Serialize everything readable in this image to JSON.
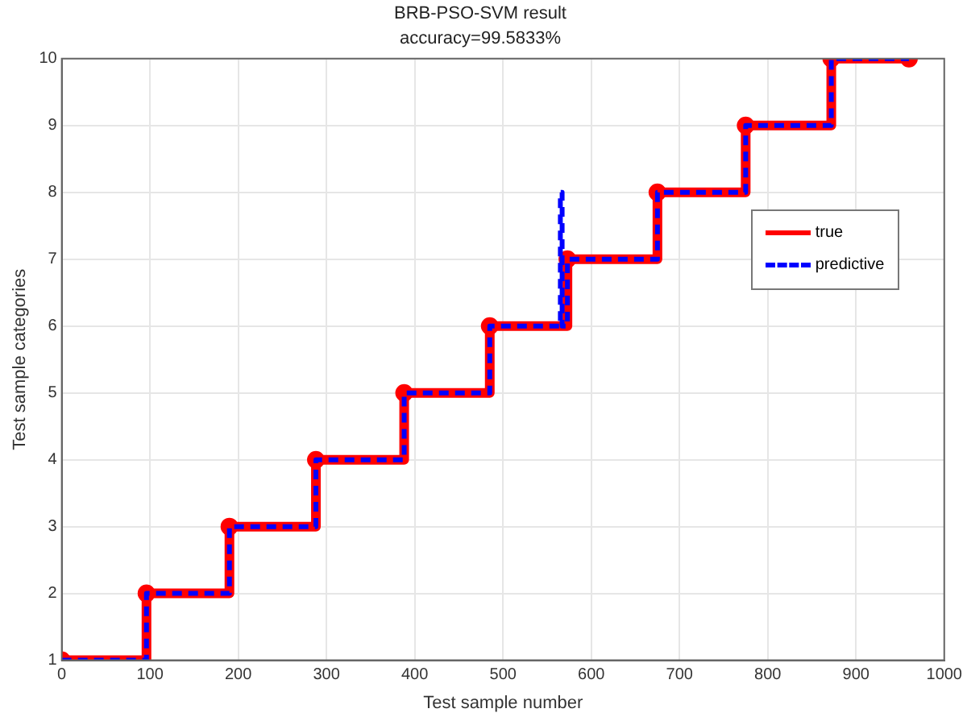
{
  "chart_data": {
    "type": "step",
    "title": "BRB-PSO-SVM result",
    "subtitle": "accuracy=99.5833%",
    "xlabel": "Test sample number",
    "ylabel": "Test sample categories",
    "xlim": [
      0,
      1000
    ],
    "xticks": [
      0,
      100,
      200,
      300,
      400,
      500,
      600,
      700,
      800,
      900,
      1000
    ],
    "ylim": [
      1,
      10
    ],
    "yticks": [
      1,
      2,
      3,
      4,
      5,
      6,
      7,
      8,
      9,
      10
    ],
    "grid": true,
    "legend": "right",
    "series": [
      {
        "name": "true",
        "color": "#ff0000",
        "line_style": "solid",
        "marker": "circle",
        "x": [
          0,
          96,
          190,
          288,
          388,
          485,
          573,
          675,
          775,
          872,
          960
        ],
        "values": [
          1,
          2,
          3,
          4,
          5,
          6,
          7,
          8,
          9,
          10,
          10
        ]
      },
      {
        "name": "predictive",
        "color": "#0000ff",
        "line_style": "dashed",
        "marker": "none",
        "x": [
          0,
          96,
          190,
          288,
          388,
          485,
          565,
          567,
          573,
          675,
          775,
          872,
          960
        ],
        "values": [
          1,
          2,
          3,
          4,
          5,
          6,
          8,
          6,
          7,
          8,
          9,
          10,
          10
        ]
      }
    ]
  }
}
